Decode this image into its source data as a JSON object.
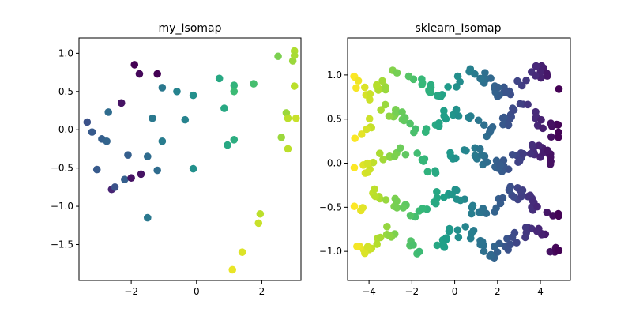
{
  "chart_data": [
    {
      "type": "scatter",
      "title": "my_Isomap",
      "xlim": [
        -3.6,
        3.2
      ],
      "ylim": [
        -1.97,
        1.2
      ],
      "xticks": [
        -2,
        0,
        2
      ],
      "yticks": [
        -1.5,
        -1.0,
        -0.5,
        0.0,
        0.5,
        1.0
      ],
      "ytick_labels": [
        "−1.5",
        "−1.0",
        "−0.5",
        "0.0",
        "0.5",
        "1.0"
      ],
      "xtick_labels": [
        "−2",
        "0",
        "2"
      ],
      "colormap": "viridis",
      "points": [
        [
          -1.9,
          0.85,
          0.0
        ],
        [
          -1.75,
          0.73,
          0.02
        ],
        [
          -1.2,
          0.73,
          0.0
        ],
        [
          -2.3,
          0.35,
          0.05
        ],
        [
          -1.05,
          0.55,
          0.4
        ],
        [
          -0.6,
          0.5,
          0.45
        ],
        [
          -0.1,
          0.45,
          0.5
        ],
        [
          -3.35,
          0.1,
          0.25
        ],
        [
          -3.2,
          -0.03,
          0.28
        ],
        [
          -2.9,
          -0.12,
          0.3
        ],
        [
          -2.75,
          -0.15,
          0.32
        ],
        [
          -2.7,
          0.23,
          0.35
        ],
        [
          -1.35,
          0.15,
          0.4
        ],
        [
          -1.05,
          -0.15,
          0.42
        ],
        [
          -0.35,
          0.13,
          0.45
        ],
        [
          -2.1,
          -0.33,
          0.3
        ],
        [
          -1.5,
          -0.35,
          0.35
        ],
        [
          -3.05,
          -0.52,
          0.28
        ],
        [
          -2.2,
          -0.65,
          0.3
        ],
        [
          -1.2,
          -0.53,
          0.35
        ],
        [
          -0.1,
          -0.51,
          0.5
        ],
        [
          -2.6,
          -0.78,
          0.1
        ],
        [
          -2.5,
          -0.75,
          0.25
        ],
        [
          -2.0,
          -0.63,
          0.05
        ],
        [
          -1.7,
          -0.58,
          0.05
        ],
        [
          -1.5,
          -1.15,
          0.4
        ],
        [
          0.7,
          0.67,
          0.6
        ],
        [
          1.15,
          0.58,
          0.65
        ],
        [
          1.75,
          0.6,
          0.7
        ],
        [
          1.15,
          0.5,
          0.68
        ],
        [
          0.85,
          0.28,
          0.6
        ],
        [
          1.15,
          -0.13,
          0.62
        ],
        [
          0.95,
          -0.2,
          0.6
        ],
        [
          2.5,
          0.96,
          0.8
        ],
        [
          2.95,
          0.9,
          0.85
        ],
        [
          3.0,
          1.03,
          0.88
        ],
        [
          3.0,
          0.97,
          0.87
        ],
        [
          3.0,
          0.57,
          0.9
        ],
        [
          2.75,
          0.22,
          0.85
        ],
        [
          2.8,
          0.15,
          0.9
        ],
        [
          3.05,
          0.15,
          0.92
        ],
        [
          2.6,
          -0.1,
          0.85
        ],
        [
          2.8,
          -0.25,
          0.9
        ],
        [
          1.95,
          -1.1,
          0.9
        ],
        [
          1.9,
          -1.22,
          0.92
        ],
        [
          1.4,
          -1.6,
          0.95
        ],
        [
          1.1,
          -1.83,
          0.97
        ]
      ]
    },
    {
      "type": "scatter",
      "title": "sklearn_Isomap",
      "xlim": [
        -5.0,
        5.4
      ],
      "ylim": [
        -1.33,
        1.42
      ],
      "xticks": [
        -4,
        -2,
        0,
        2,
        4
      ],
      "xtick_labels": [
        "−4",
        "−2",
        "0",
        "2",
        "4"
      ],
      "yticks": [
        -1.0,
        -0.5,
        0.0,
        0.5,
        1.0
      ],
      "ytick_labels": [
        "−1.0",
        "−0.5",
        "0.0",
        "0.5",
        "1.0"
      ],
      "colormap": "viridis",
      "color_by": "x",
      "bands": [
        {
          "y": 0.92,
          "amp": 0.12,
          "phase": 0.0
        },
        {
          "y": 0.48,
          "amp": 0.12,
          "phase": 1.5
        },
        {
          "y": 0.06,
          "amp": 0.1,
          "phase": 0.5
        },
        {
          "y": -0.45,
          "amp": 0.12,
          "phase": 2.2
        },
        {
          "y": -0.88,
          "amp": 0.12,
          "phase": 1.0
        }
      ],
      "x_range": [
        -4.7,
        4.9
      ],
      "points_per_band": 70
    }
  ]
}
